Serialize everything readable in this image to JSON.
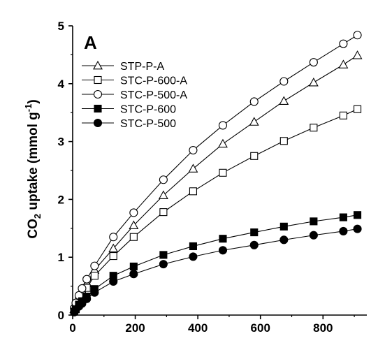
{
  "chart_data": {
    "type": "line",
    "panel_label": "A",
    "title": "",
    "xlabel": "",
    "ylabel": {
      "prefix": "CO",
      "sub": "2",
      "middle": " uptake (mmol g",
      "sup": "-1",
      "suffix": ")"
    },
    "xlim": [
      0,
      940
    ],
    "ylim": [
      0,
      5
    ],
    "xticks": [
      0,
      200,
      400,
      600,
      800
    ],
    "yticks": [
      0,
      1,
      2,
      3,
      4,
      5
    ],
    "grid": false,
    "legend_position": "top-left",
    "series": [
      {
        "name": "STP-P-A",
        "marker": "triangle-open",
        "x": [
          5,
          10,
          20,
          30,
          45,
          70,
          130,
          195,
          290,
          385,
          480,
          580,
          675,
          770,
          865,
          910
        ],
        "y": [
          0.1,
          0.18,
          0.3,
          0.4,
          0.55,
          0.78,
          1.15,
          1.55,
          2.07,
          2.53,
          2.96,
          3.34,
          3.7,
          4.02,
          4.33,
          4.49
        ]
      },
      {
        "name": "STC-P-600-A",
        "marker": "square-open",
        "x": [
          5,
          10,
          20,
          30,
          45,
          70,
          130,
          195,
          290,
          385,
          480,
          580,
          675,
          770,
          865,
          910
        ],
        "y": [
          0.09,
          0.15,
          0.26,
          0.34,
          0.47,
          0.68,
          1.02,
          1.35,
          1.78,
          2.14,
          2.46,
          2.75,
          3.01,
          3.24,
          3.45,
          3.56
        ]
      },
      {
        "name": "STC-P-500-A",
        "marker": "circle-open",
        "x": [
          5,
          10,
          20,
          30,
          45,
          70,
          130,
          195,
          290,
          385,
          480,
          580,
          675,
          770,
          865,
          910
        ],
        "y": [
          0.12,
          0.21,
          0.34,
          0.46,
          0.62,
          0.85,
          1.35,
          1.77,
          2.34,
          2.85,
          3.28,
          3.69,
          4.04,
          4.37,
          4.69,
          4.84
        ]
      },
      {
        "name": "STC-P-600",
        "marker": "square-filled",
        "x": [
          5,
          10,
          20,
          30,
          45,
          70,
          130,
          195,
          290,
          385,
          480,
          580,
          675,
          770,
          865,
          910
        ],
        "y": [
          0.06,
          0.1,
          0.18,
          0.24,
          0.32,
          0.45,
          0.68,
          0.84,
          1.04,
          1.19,
          1.32,
          1.43,
          1.53,
          1.62,
          1.69,
          1.73
        ]
      },
      {
        "name": "STC-P-500",
        "marker": "circle-filled",
        "x": [
          5,
          10,
          20,
          30,
          45,
          70,
          130,
          195,
          290,
          385,
          480,
          580,
          675,
          770,
          865,
          910
        ],
        "y": [
          0.05,
          0.09,
          0.15,
          0.2,
          0.28,
          0.39,
          0.58,
          0.71,
          0.88,
          1.01,
          1.12,
          1.21,
          1.3,
          1.38,
          1.45,
          1.49
        ]
      }
    ]
  }
}
